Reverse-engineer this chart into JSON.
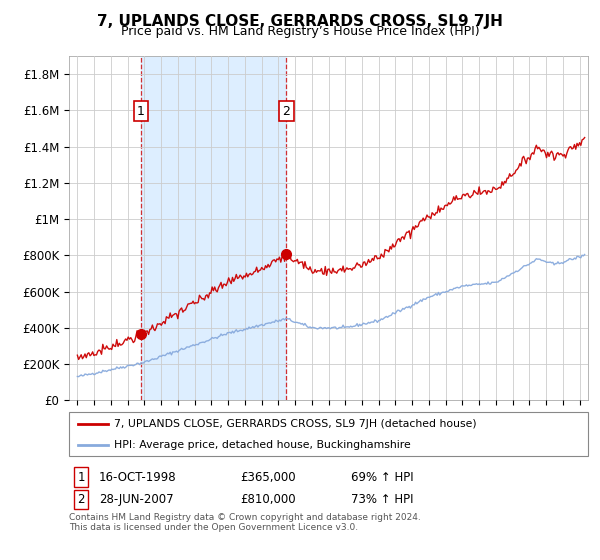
{
  "title": "7, UPLANDS CLOSE, GERRARDS CROSS, SL9 7JH",
  "subtitle": "Price paid vs. HM Land Registry’s House Price Index (HPI)",
  "sale1_year": 1998.79,
  "sale1_price": 365000,
  "sale1_label": "1",
  "sale1_date": "16-OCT-1998",
  "sale1_pct": "69% ↑ HPI",
  "sale2_year": 2007.49,
  "sale2_price": 810000,
  "sale2_label": "2",
  "sale2_date": "28-JUN-2007",
  "sale2_pct": "73% ↑ HPI",
  "ylabel_ticks": [
    0,
    200000,
    400000,
    600000,
    800000,
    1000000,
    1200000,
    1400000,
    1600000,
    1800000
  ],
  "ylabel_labels": [
    "£0",
    "£200K",
    "£400K",
    "£600K",
    "£800K",
    "£1M",
    "£1.2M",
    "£1.4M",
    "£1.6M",
    "£1.8M"
  ],
  "ylim": [
    0,
    1900000
  ],
  "xlim_start": 1994.5,
  "xlim_end": 2025.5,
  "legend_line1": "7, UPLANDS CLOSE, GERRARDS CROSS, SL9 7JH (detached house)",
  "legend_line2": "HPI: Average price, detached house, Buckinghamshire",
  "footer_line1": "Contains HM Land Registry data © Crown copyright and database right 2024.",
  "footer_line2": "This data is licensed under the Open Government Licence v3.0.",
  "red_color": "#cc0000",
  "blue_color": "#88aadd",
  "shade_color": "#ddeeff",
  "marker_color": "#cc0000",
  "bg_color": "#ffffff",
  "grid_color": "#cccccc",
  "sale1_price_str": "£365,000",
  "sale2_price_str": "£810,000"
}
